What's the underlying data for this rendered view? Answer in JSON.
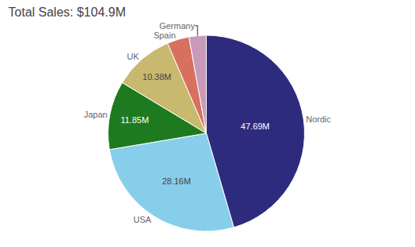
{
  "chart_data": {
    "type": "pie",
    "title": "Total Sales: $104.9M",
    "categories": [
      "Nordic",
      "USA",
      "Japan",
      "UK",
      "Spain",
      "Germany"
    ],
    "values": [
      47.69,
      28.16,
      11.85,
      10.38,
      3.8,
      2.97
    ],
    "value_labels": [
      "47.69M",
      "28.16M",
      "11.85M",
      "10.38M",
      null,
      null
    ],
    "colors": [
      "#2e2b7f",
      "#87ceeb",
      "#1e7a1e",
      "#c8b96e",
      "#d87060",
      "#c899b8"
    ]
  }
}
